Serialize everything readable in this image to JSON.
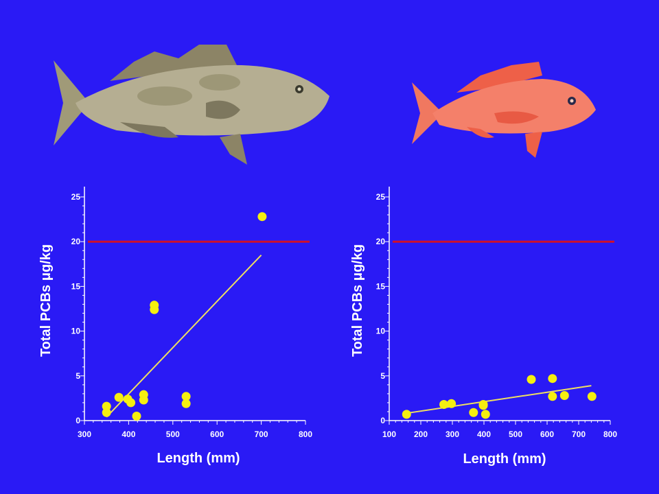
{
  "colors": {
    "background": "#2a1af5",
    "threshold": "#d0102a",
    "points": "#f5ef10",
    "trend": "#f0e060",
    "axis": "#ffffff"
  },
  "illustrations": {
    "left": "gag-grouper-illustration",
    "right": "red-snapper-illustration"
  },
  "chart_data": [
    {
      "type": "scatter",
      "title": "",
      "xlabel": "Length (mm)",
      "ylabel": "Total PCBs  μg/kg",
      "xlim": [
        300,
        800
      ],
      "ylim": [
        0,
        25
      ],
      "xticks": [
        300,
        400,
        500,
        600,
        700,
        800
      ],
      "yticks": [
        0,
        5,
        10,
        15,
        20,
        25
      ],
      "threshold": 20,
      "points": [
        {
          "x": 350,
          "y": 1.6
        },
        {
          "x": 350,
          "y": 0.9
        },
        {
          "x": 378,
          "y": 2.6
        },
        {
          "x": 398,
          "y": 2.4
        },
        {
          "x": 405,
          "y": 2.0
        },
        {
          "x": 418,
          "y": 0.5
        },
        {
          "x": 434,
          "y": 2.9
        },
        {
          "x": 434,
          "y": 2.3
        },
        {
          "x": 458,
          "y": 12.9
        },
        {
          "x": 458,
          "y": 12.4
        },
        {
          "x": 530,
          "y": 2.7
        },
        {
          "x": 530,
          "y": 1.9
        },
        {
          "x": 702,
          "y": 22.8
        }
      ],
      "trend": {
        "x": [
          350,
          700
        ],
        "y": [
          0.4,
          18.5
        ]
      }
    },
    {
      "type": "scatter",
      "title": "",
      "xlabel": "Length (mm)",
      "ylabel": "Total PCBs  μg/kg",
      "xlim": [
        100,
        800
      ],
      "ylim": [
        0,
        25
      ],
      "xticks": [
        100,
        200,
        300,
        400,
        500,
        600,
        700,
        800
      ],
      "yticks": [
        0,
        5,
        10,
        15,
        20,
        25
      ],
      "threshold": 20,
      "points": [
        {
          "x": 155,
          "y": 0.7
        },
        {
          "x": 273,
          "y": 1.8
        },
        {
          "x": 297,
          "y": 1.9
        },
        {
          "x": 367,
          "y": 0.9
        },
        {
          "x": 398,
          "y": 1.7
        },
        {
          "x": 398,
          "y": 1.8
        },
        {
          "x": 405,
          "y": 0.7
        },
        {
          "x": 550,
          "y": 4.6
        },
        {
          "x": 617,
          "y": 4.7
        },
        {
          "x": 617,
          "y": 2.7
        },
        {
          "x": 655,
          "y": 2.8
        },
        {
          "x": 742,
          "y": 2.7
        }
      ],
      "trend": {
        "x": [
          150,
          740
        ],
        "y": [
          0.8,
          3.9
        ]
      }
    }
  ]
}
